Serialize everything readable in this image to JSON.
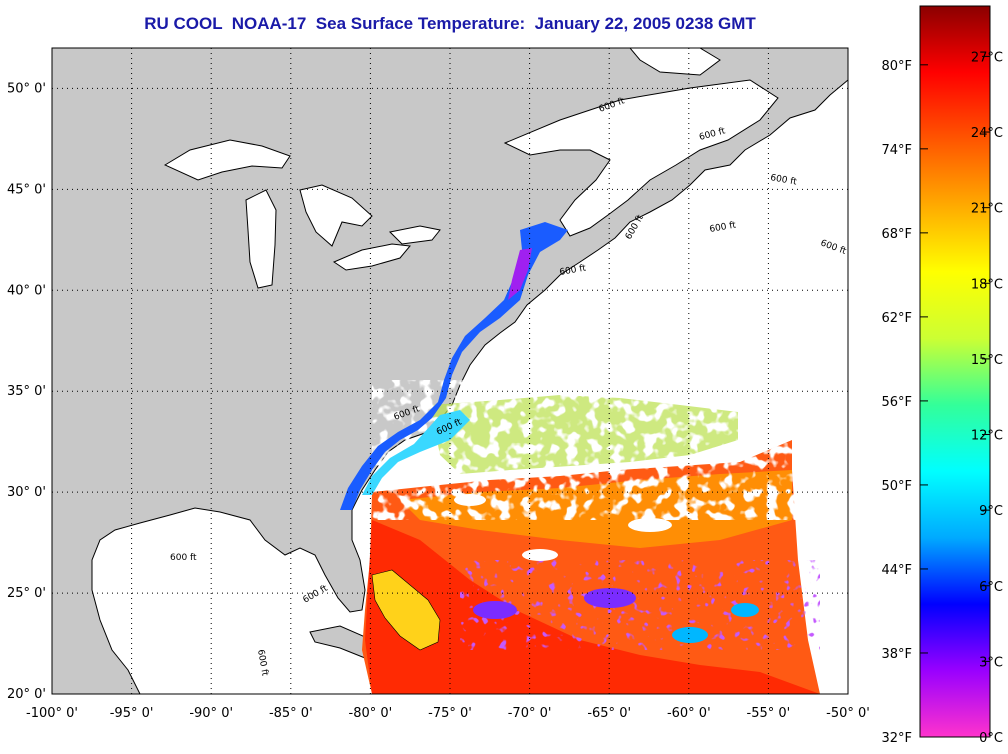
{
  "title": "RU COOL  NOAA-17  Sea Surface Temperature:  January 22, 2005 0238 GMT",
  "map": {
    "lon_range": [
      -100,
      -50
    ],
    "lat_range": [
      20,
      52
    ],
    "grid": "dotted",
    "contour_label": "600 ft",
    "lon_ticks": [
      {
        "value": -100,
        "label": "-100° 0'"
      },
      {
        "value": -95,
        "label": "-95° 0'"
      },
      {
        "value": -90,
        "label": "-90° 0'"
      },
      {
        "value": -85,
        "label": "-85° 0'"
      },
      {
        "value": -80,
        "label": "-80° 0'"
      },
      {
        "value": -75,
        "label": "-75° 0'"
      },
      {
        "value": -70,
        "label": "-70° 0'"
      },
      {
        "value": -65,
        "label": "-65° 0'"
      },
      {
        "value": -60,
        "label": "-60° 0'"
      },
      {
        "value": -55,
        "label": "-55° 0'"
      },
      {
        "value": -50,
        "label": "-50° 0'"
      }
    ],
    "lat_ticks": [
      {
        "value": 50,
        "label": "50° 0'"
      },
      {
        "value": 45,
        "label": "45° 0'"
      },
      {
        "value": 40,
        "label": "40° 0'"
      },
      {
        "value": 35,
        "label": "35° 0'"
      },
      {
        "value": 30,
        "label": "30° 0'"
      },
      {
        "value": 25,
        "label": "25° 0'"
      },
      {
        "value": 20,
        "label": "20° 0'"
      }
    ],
    "land_color": "#c8c8c8",
    "cloud_color": "#ffffff"
  },
  "colorbar": {
    "celsius_range": [
      0,
      29
    ],
    "celsius_ticks": [
      {
        "value": 0,
        "label": "0°C"
      },
      {
        "value": 3,
        "label": "3°C"
      },
      {
        "value": 6,
        "label": "6°C"
      },
      {
        "value": 9,
        "label": "9°C"
      },
      {
        "value": 12,
        "label": "12°C"
      },
      {
        "value": 15,
        "label": "15°C"
      },
      {
        "value": 18,
        "label": "18°C"
      },
      {
        "value": 21,
        "label": "21°C"
      },
      {
        "value": 24,
        "label": "24°C"
      },
      {
        "value": 27,
        "label": "27°C"
      }
    ],
    "fahrenheit_ticks": [
      {
        "value": 32,
        "label": "32°F"
      },
      {
        "value": 38,
        "label": "38°F"
      },
      {
        "value": 44,
        "label": "44°F"
      },
      {
        "value": 50,
        "label": "50°F"
      },
      {
        "value": 56,
        "label": "56°F"
      },
      {
        "value": 62,
        "label": "62°F"
      },
      {
        "value": 68,
        "label": "68°F"
      },
      {
        "value": 74,
        "label": "74°F"
      },
      {
        "value": 80,
        "label": "80°F"
      }
    ],
    "stops": [
      "#ff33cc",
      "#9900ff",
      "#0000ff",
      "#00aaff",
      "#00ffff",
      "#33ff99",
      "#ccff33",
      "#ffff00",
      "#ffaa00",
      "#ff5500",
      "#ff0000",
      "#8b0000"
    ]
  }
}
